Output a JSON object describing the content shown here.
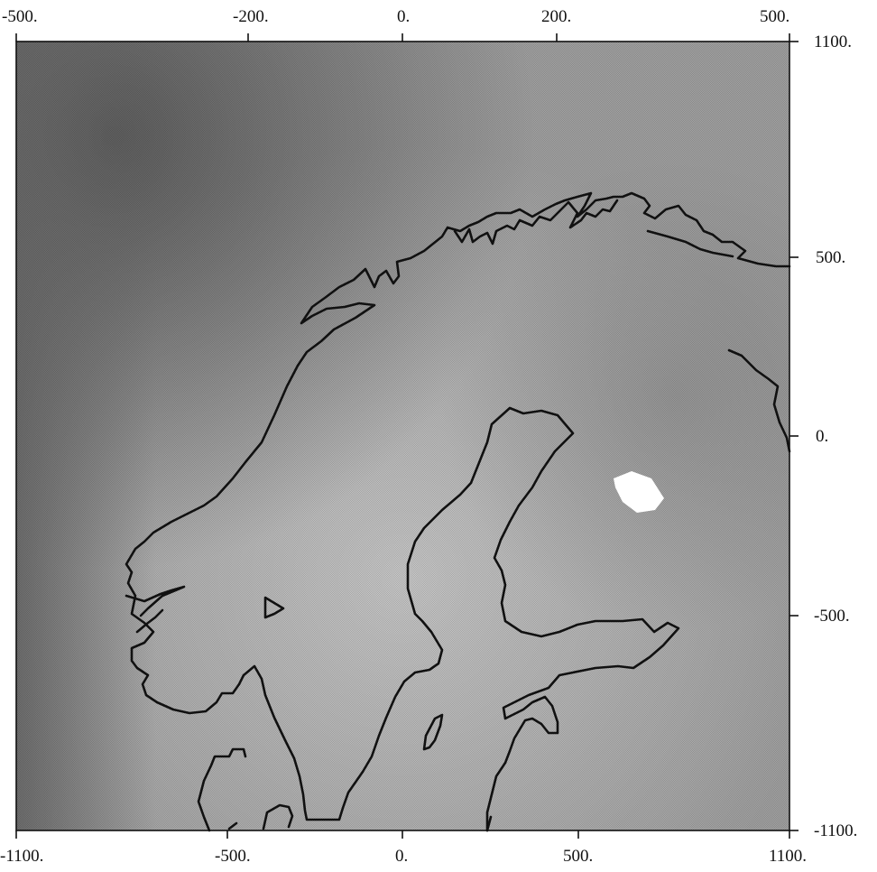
{
  "map": {
    "top_ticks": [
      "-500.",
      "-200.",
      "0.",
      "200.",
      "500."
    ],
    "bottom_ticks": [
      "-1100.",
      "-500.",
      "0.",
      "500.",
      "1100."
    ],
    "right_ticks": [
      "1100.",
      "500.",
      "0.",
      "-500.",
      "-1100."
    ],
    "colors": {
      "background_dark": "#6b6b6b",
      "background_mid": "#9a9a9a",
      "background_light": "#c4c4c4",
      "highlight": "#ffffff",
      "coastline": "#111111"
    },
    "features": [
      "coastline-outline",
      "bright-spot"
    ]
  }
}
